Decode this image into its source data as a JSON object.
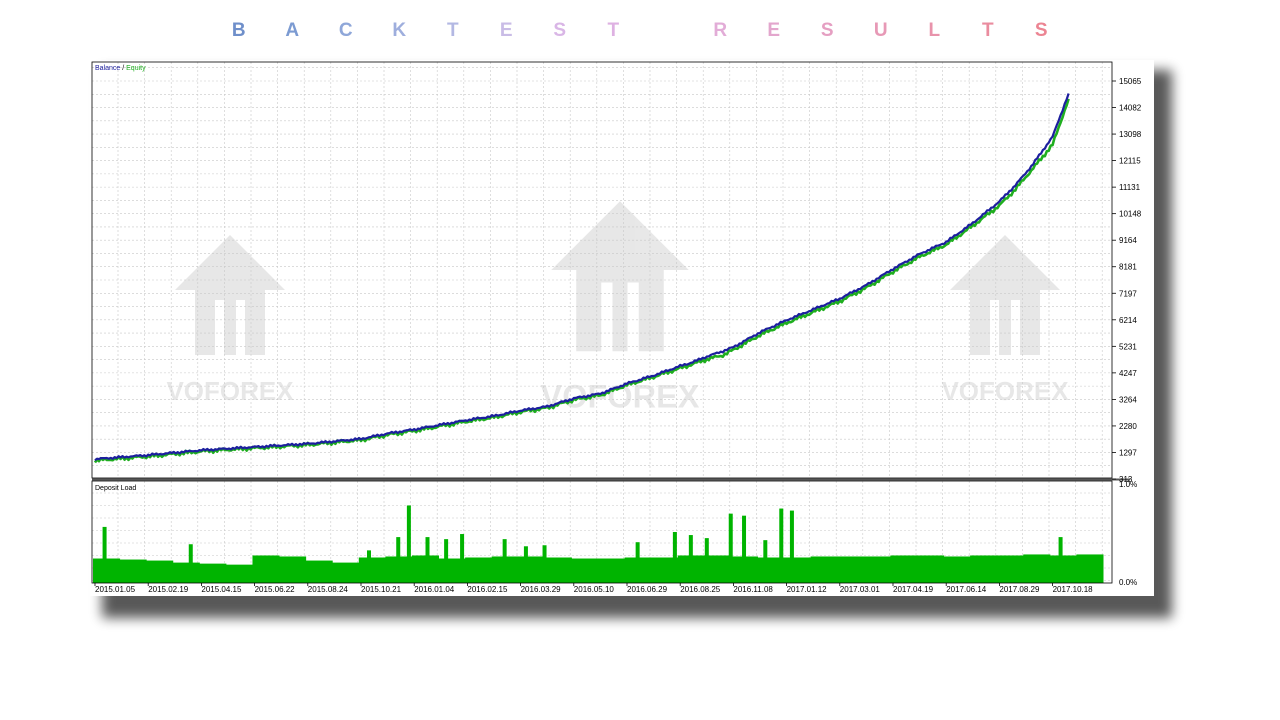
{
  "page": {
    "title_letters": [
      "B",
      "A",
      "C",
      "K",
      "T",
      "E",
      "S",
      "T",
      " ",
      "R",
      "E",
      "S",
      "U",
      "L",
      "T",
      "S"
    ],
    "title_colors": [
      "#6f8fca",
      "#7c9bd2",
      "#8fa7d9",
      "#9eaedd",
      "#b3b8e3",
      "#c9bce6",
      "#d9b6e6",
      "#deb1e2",
      "#ffffff",
      "#e2acd7",
      "#e3a6cd",
      "#e59fc2",
      "#e799b6",
      "#e893ab",
      "#ea8c9f",
      "#ec8593"
    ]
  },
  "watermark": {
    "text": "VOFOREX"
  },
  "chart_data": [
    {
      "type": "line",
      "legend": {
        "items": [
          {
            "name": "Balance",
            "color": "#1d1f9e"
          },
          {
            "name": "Equity",
            "color": "#1fae1f"
          }
        ],
        "separator": " / ",
        "placement": "top-left"
      },
      "x_ticks": [
        "2015.01.05",
        "2015.02.19",
        "2015.04.15",
        "2015.06.22",
        "2015.08.24",
        "2015.10.21",
        "2016.01.04",
        "2016.02.15",
        "2016.03.29",
        "2016.05.10",
        "2016.06.29",
        "2016.08.25",
        "2016.11.08",
        "2017.01.12",
        "2017.03.01",
        "2017.04.19",
        "2017.06.14",
        "2017.08.29",
        "2017.10.18"
      ],
      "y_ticks": [
        "313",
        "1297",
        "2280",
        "3264",
        "4247",
        "5231",
        "6214",
        "7197",
        "8181",
        "9164",
        "10148",
        "11131",
        "12115",
        "13098",
        "14082",
        "15065"
      ],
      "ylim": [
        313,
        15065
      ],
      "grid": true,
      "series": [
        {
          "name": "Balance",
          "color": "#1d1f9e",
          "x_index": [
            0,
            1,
            2,
            3,
            4,
            5,
            5.5,
            6,
            7,
            7.5,
            8,
            8.5,
            9,
            9.5,
            10,
            10.5,
            11,
            11.2,
            11.5,
            11.8,
            12,
            12.5,
            13,
            13.5,
            14,
            14.5,
            15,
            15.5,
            16,
            16.5,
            17,
            17.3,
            17.6,
            18,
            18.3
          ],
          "values": [
            1050,
            1200,
            1380,
            1500,
            1620,
            1800,
            2000,
            2150,
            2500,
            2650,
            2850,
            3000,
            3300,
            3480,
            3850,
            4150,
            4500,
            4620,
            4850,
            5050,
            5200,
            5750,
            6200,
            6600,
            7000,
            7500,
            8100,
            8650,
            9100,
            9800,
            10600,
            11200,
            11900,
            13000,
            14600
          ]
        },
        {
          "name": "Equity",
          "color": "#1fae1f",
          "x_index": [
            0,
            1,
            2,
            3,
            4,
            5,
            5.5,
            6,
            7,
            7.5,
            8,
            8.5,
            9,
            9.5,
            10,
            10.5,
            11,
            11.2,
            11.5,
            11.8,
            12,
            12.5,
            13,
            13.5,
            14,
            14.5,
            15,
            15.5,
            16,
            16.5,
            17,
            17.3,
            17.6,
            18,
            18.3
          ],
          "values": [
            1000,
            1150,
            1340,
            1460,
            1580,
            1760,
            1950,
            2100,
            2450,
            2600,
            2800,
            2950,
            3250,
            3420,
            3800,
            4100,
            4420,
            4550,
            4750,
            4900,
            5100,
            5650,
            6100,
            6500,
            6900,
            7400,
            8000,
            8550,
            9000,
            9700,
            10450,
            11050,
            11750,
            12700,
            14400
          ]
        }
      ]
    },
    {
      "type": "bar",
      "title": "Deposit Load",
      "y_ticks": [
        "0.0%",
        "1.0%"
      ],
      "ylim": [
        0,
        1.0
      ],
      "color": "#00b400",
      "baseline_level": [
        0.24,
        0.23,
        0.22,
        0.2,
        0.19,
        0.18,
        0.27,
        0.26,
        0.22,
        0.2,
        0.25,
        0.26,
        0.27,
        0.24,
        0.25,
        0.26,
        0.26,
        0.25,
        0.24,
        0.24,
        0.25,
        0.25,
        0.27,
        0.27,
        0.26,
        0.25,
        0.25,
        0.26,
        0.26,
        0.26,
        0.27,
        0.27,
        0.26,
        0.27,
        0.27,
        0.28,
        0.27,
        0.28
      ],
      "spikes": [
        {
          "x_index": 0.18,
          "level": 0.55
        },
        {
          "x_index": 1.8,
          "level": 0.38
        },
        {
          "x_index": 5.15,
          "level": 0.32
        },
        {
          "x_index": 5.7,
          "level": 0.45
        },
        {
          "x_index": 5.9,
          "level": 0.76
        },
        {
          "x_index": 6.25,
          "level": 0.45
        },
        {
          "x_index": 6.6,
          "level": 0.43
        },
        {
          "x_index": 6.9,
          "level": 0.48
        },
        {
          "x_index": 7.7,
          "level": 0.43
        },
        {
          "x_index": 8.1,
          "level": 0.36
        },
        {
          "x_index": 8.45,
          "level": 0.37
        },
        {
          "x_index": 10.2,
          "level": 0.4
        },
        {
          "x_index": 10.9,
          "level": 0.5
        },
        {
          "x_index": 11.2,
          "level": 0.47
        },
        {
          "x_index": 11.5,
          "level": 0.44
        },
        {
          "x_index": 11.95,
          "level": 0.68
        },
        {
          "x_index": 12.2,
          "level": 0.66
        },
        {
          "x_index": 12.6,
          "level": 0.42
        },
        {
          "x_index": 12.9,
          "level": 0.73
        },
        {
          "x_index": 13.1,
          "level": 0.71
        },
        {
          "x_index": 18.15,
          "level": 0.45
        }
      ]
    }
  ]
}
